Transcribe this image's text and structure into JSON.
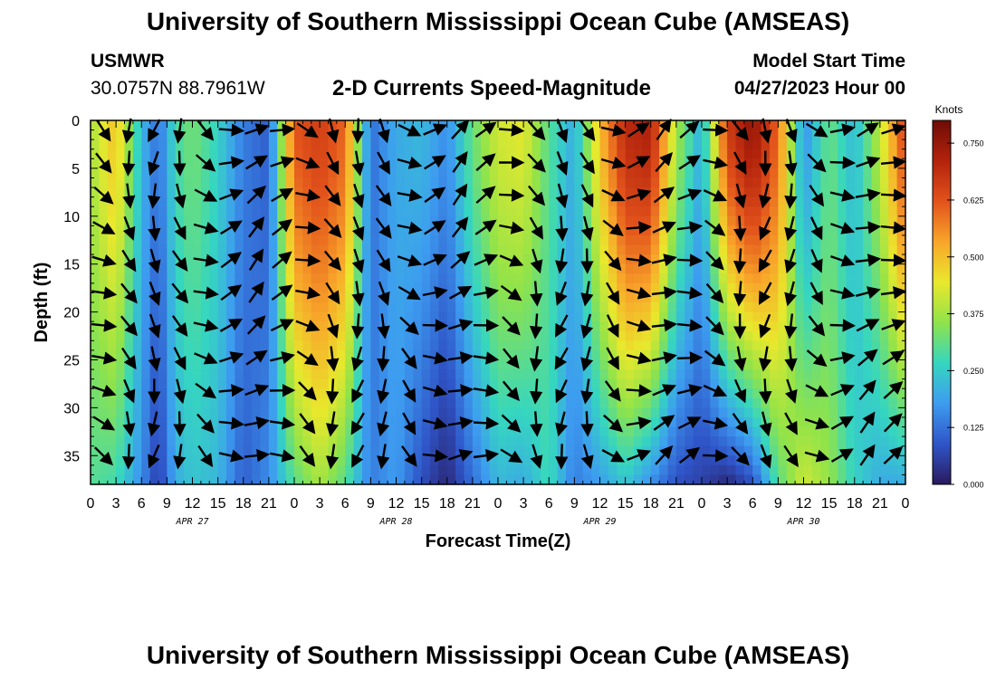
{
  "header": {
    "title": "University of Southern Mississippi Ocean Cube (AMSEAS)",
    "station": "USMWR",
    "coordinates": "30.0757N  88.7961W",
    "subtitle": "2-D Currents Speed-Magnitude",
    "model_start_label": "Model Start Time",
    "model_start_value": "04/27/2023 Hour 00"
  },
  "footer": {
    "title": "University of Southern Mississippi Ocean Cube (AMSEAS)"
  },
  "chart_data": {
    "type": "heatmap",
    "title": "2-D Currents Speed-Magnitude",
    "xlabel": "Forecast Time(Z)",
    "ylabel": "Depth (ft)",
    "x_range_hours": [
      0,
      96
    ],
    "y_range_ft": [
      0,
      38
    ],
    "y_inverted": true,
    "xticks": [
      0,
      3,
      6,
      9,
      12,
      15,
      18,
      21,
      24,
      27,
      30,
      33,
      36,
      39,
      42,
      45,
      48,
      51,
      54,
      57,
      60,
      63,
      66,
      69,
      72,
      75,
      78,
      81,
      84,
      87,
      90,
      93,
      96
    ],
    "xtick_labels": [
      "0",
      "3",
      "6",
      "9",
      "12",
      "15",
      "18",
      "21",
      "0",
      "3",
      "6",
      "9",
      "12",
      "15",
      "18",
      "21",
      "0",
      "3",
      "6",
      "9",
      "12",
      "15",
      "18",
      "21",
      "0",
      "3",
      "6",
      "9",
      "12",
      "15",
      "18",
      "21",
      "0"
    ],
    "yticks": [
      0,
      5,
      10,
      15,
      20,
      25,
      30,
      35
    ],
    "ytick_labels": [
      "0",
      "5",
      "10",
      "15",
      "20",
      "25",
      "30",
      "35"
    ],
    "date_labels": [
      {
        "text": "APR 27",
        "hour": 12
      },
      {
        "text": "APR 28",
        "hour": 36
      },
      {
        "text": "APR 29",
        "hour": 60
      },
      {
        "text": "APR 30",
        "hour": 84
      }
    ],
    "colorbar": {
      "units": "Knots",
      "min": 0.0,
      "max": 0.8,
      "ticks": [
        0.0,
        0.125,
        0.25,
        0.375,
        0.5,
        0.625,
        0.75
      ],
      "tick_labels": [
        "0.000",
        "0.125",
        "0.250",
        "0.375",
        "0.500",
        "0.625",
        "0.750"
      ],
      "colors": [
        "#2a1a5e",
        "#2f55c8",
        "#3d9cf0",
        "#35d6c0",
        "#8fe34a",
        "#e9e82c",
        "#f8a52a",
        "#e2521b",
        "#b3230c",
        "#6e0c06"
      ]
    },
    "speed_profile_knots_by_hour": {
      "hours": [
        0,
        3,
        6,
        8,
        10,
        12,
        15,
        18,
        21,
        24,
        27,
        30,
        33,
        36,
        39,
        42,
        45,
        48,
        51,
        54,
        57,
        60,
        63,
        66,
        69,
        72,
        75,
        78,
        81,
        84,
        87,
        90,
        93,
        96
      ],
      "surface": [
        0.38,
        0.5,
        0.22,
        0.12,
        0.28,
        0.33,
        0.26,
        0.14,
        0.1,
        0.62,
        0.66,
        0.6,
        0.12,
        0.2,
        0.22,
        0.16,
        0.32,
        0.42,
        0.44,
        0.3,
        0.2,
        0.5,
        0.7,
        0.72,
        0.38,
        0.2,
        0.66,
        0.76,
        0.6,
        0.16,
        0.32,
        0.22,
        0.4,
        0.66
      ],
      "bottom": [
        0.3,
        0.28,
        0.16,
        0.05,
        0.2,
        0.24,
        0.22,
        0.1,
        0.16,
        0.3,
        0.38,
        0.3,
        0.14,
        0.18,
        0.08,
        0.02,
        0.12,
        0.22,
        0.2,
        0.28,
        0.14,
        0.18,
        0.24,
        0.16,
        0.08,
        0.06,
        0.02,
        0.08,
        0.3,
        0.42,
        0.36,
        0.26,
        0.2,
        0.2
      ]
    }
  }
}
